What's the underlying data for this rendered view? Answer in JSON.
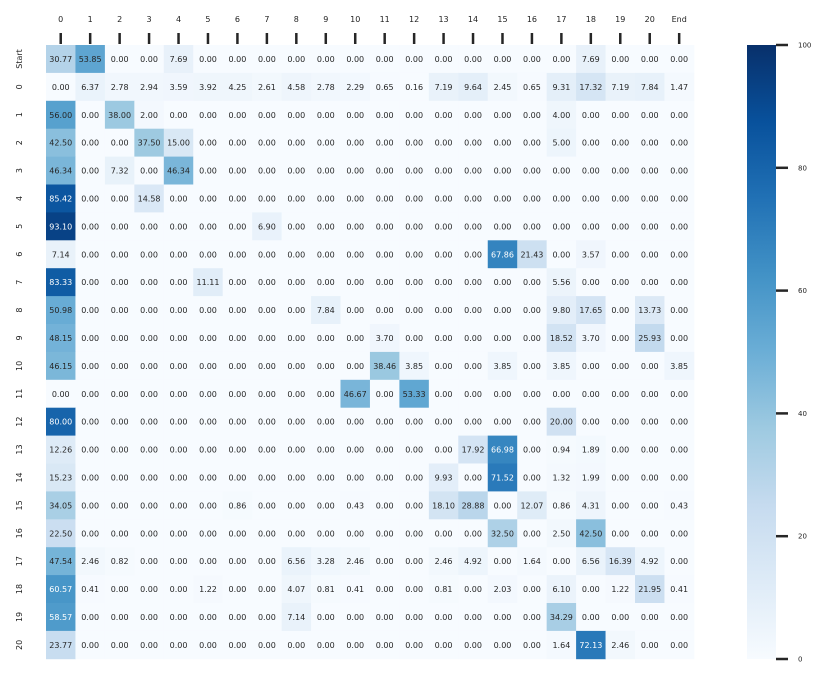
{
  "chart_data": {
    "type": "heatmap",
    "x_categories": [
      "0",
      "1",
      "2",
      "3",
      "4",
      "5",
      "6",
      "7",
      "8",
      "9",
      "10",
      "11",
      "12",
      "13",
      "14",
      "15",
      "16",
      "17",
      "18",
      "19",
      "20",
      "End"
    ],
    "y_categories": [
      "Start",
      "0",
      "1",
      "2",
      "3",
      "4",
      "5",
      "6",
      "7",
      "8",
      "9",
      "10",
      "11",
      "12",
      "13",
      "14",
      "15",
      "16",
      "17",
      "18",
      "19",
      "20"
    ],
    "values": [
      [
        30.77,
        53.85,
        0.0,
        0.0,
        7.69,
        0.0,
        0.0,
        0.0,
        0.0,
        0.0,
        0.0,
        0.0,
        0.0,
        0.0,
        0.0,
        0.0,
        0.0,
        0.0,
        7.69,
        0.0,
        0.0,
        0.0
      ],
      [
        0.0,
        6.37,
        2.78,
        2.94,
        3.59,
        3.92,
        4.25,
        2.61,
        4.58,
        2.78,
        2.29,
        0.65,
        0.16,
        7.19,
        9.64,
        2.45,
        0.65,
        9.31,
        17.32,
        7.19,
        7.84,
        1.47
      ],
      [
        56.0,
        0.0,
        38.0,
        2.0,
        0.0,
        0.0,
        0.0,
        0.0,
        0.0,
        0.0,
        0.0,
        0.0,
        0.0,
        0.0,
        0.0,
        0.0,
        0.0,
        4.0,
        0.0,
        0.0,
        0.0,
        0.0
      ],
      [
        42.5,
        0.0,
        0.0,
        37.5,
        15.0,
        0.0,
        0.0,
        0.0,
        0.0,
        0.0,
        0.0,
        0.0,
        0.0,
        0.0,
        0.0,
        0.0,
        0.0,
        5.0,
        0.0,
        0.0,
        0.0,
        0.0
      ],
      [
        46.34,
        0.0,
        7.32,
        0.0,
        46.34,
        0.0,
        0.0,
        0.0,
        0.0,
        0.0,
        0.0,
        0.0,
        0.0,
        0.0,
        0.0,
        0.0,
        0.0,
        0.0,
        0.0,
        0.0,
        0.0,
        0.0
      ],
      [
        85.42,
        0.0,
        0.0,
        14.58,
        0.0,
        0.0,
        0.0,
        0.0,
        0.0,
        0.0,
        0.0,
        0.0,
        0.0,
        0.0,
        0.0,
        0.0,
        0.0,
        0.0,
        0.0,
        0.0,
        0.0,
        0.0
      ],
      [
        93.1,
        0.0,
        0.0,
        0.0,
        0.0,
        0.0,
        0.0,
        6.9,
        0.0,
        0.0,
        0.0,
        0.0,
        0.0,
        0.0,
        0.0,
        0.0,
        0.0,
        0.0,
        0.0,
        0.0,
        0.0,
        0.0
      ],
      [
        7.14,
        0.0,
        0.0,
        0.0,
        0.0,
        0.0,
        0.0,
        0.0,
        0.0,
        0.0,
        0.0,
        0.0,
        0.0,
        0.0,
        0.0,
        67.86,
        21.43,
        0.0,
        3.57,
        0.0,
        0.0,
        0.0
      ],
      [
        83.33,
        0.0,
        0.0,
        0.0,
        0.0,
        11.11,
        0.0,
        0.0,
        0.0,
        0.0,
        0.0,
        0.0,
        0.0,
        0.0,
        0.0,
        0.0,
        0.0,
        5.56,
        0.0,
        0.0,
        0.0,
        0.0
      ],
      [
        50.98,
        0.0,
        0.0,
        0.0,
        0.0,
        0.0,
        0.0,
        0.0,
        0.0,
        7.84,
        0.0,
        0.0,
        0.0,
        0.0,
        0.0,
        0.0,
        0.0,
        9.8,
        17.65,
        0.0,
        13.73,
        0.0
      ],
      [
        48.15,
        0.0,
        0.0,
        0.0,
        0.0,
        0.0,
        0.0,
        0.0,
        0.0,
        0.0,
        0.0,
        3.7,
        0.0,
        0.0,
        0.0,
        0.0,
        0.0,
        18.52,
        3.7,
        0.0,
        25.93,
        0.0
      ],
      [
        46.15,
        0.0,
        0.0,
        0.0,
        0.0,
        0.0,
        0.0,
        0.0,
        0.0,
        0.0,
        0.0,
        38.46,
        3.85,
        0.0,
        0.0,
        3.85,
        0.0,
        3.85,
        0.0,
        0.0,
        0.0,
        3.85
      ],
      [
        0.0,
        0.0,
        0.0,
        0.0,
        0.0,
        0.0,
        0.0,
        0.0,
        0.0,
        0.0,
        46.67,
        0.0,
        53.33,
        0.0,
        0.0,
        0.0,
        0.0,
        0.0,
        0.0,
        0.0,
        0.0,
        0.0
      ],
      [
        80.0,
        0.0,
        0.0,
        0.0,
        0.0,
        0.0,
        0.0,
        0.0,
        0.0,
        0.0,
        0.0,
        0.0,
        0.0,
        0.0,
        0.0,
        0.0,
        0.0,
        20.0,
        0.0,
        0.0,
        0.0,
        0.0
      ],
      [
        12.26,
        0.0,
        0.0,
        0.0,
        0.0,
        0.0,
        0.0,
        0.0,
        0.0,
        0.0,
        0.0,
        0.0,
        0.0,
        0.0,
        17.92,
        66.98,
        0.0,
        0.94,
        1.89,
        0.0,
        0.0,
        0.0
      ],
      [
        15.23,
        0.0,
        0.0,
        0.0,
        0.0,
        0.0,
        0.0,
        0.0,
        0.0,
        0.0,
        0.0,
        0.0,
        0.0,
        9.93,
        0.0,
        71.52,
        0.0,
        1.32,
        1.99,
        0.0,
        0.0,
        0.0
      ],
      [
        34.05,
        0.0,
        0.0,
        0.0,
        0.0,
        0.0,
        0.86,
        0.0,
        0.0,
        0.0,
        0.43,
        0.0,
        0.0,
        18.1,
        28.88,
        0.0,
        12.07,
        0.86,
        4.31,
        0.0,
        0.0,
        0.43
      ],
      [
        22.5,
        0.0,
        0.0,
        0.0,
        0.0,
        0.0,
        0.0,
        0.0,
        0.0,
        0.0,
        0.0,
        0.0,
        0.0,
        0.0,
        0.0,
        32.5,
        0.0,
        2.5,
        42.5,
        0.0,
        0.0,
        0.0
      ],
      [
        47.54,
        2.46,
        0.82,
        0.0,
        0.0,
        0.0,
        0.0,
        0.0,
        6.56,
        3.28,
        2.46,
        0.0,
        0.0,
        2.46,
        4.92,
        0.0,
        1.64,
        0.0,
        6.56,
        16.39,
        4.92,
        0.0
      ],
      [
        60.57,
        0.41,
        0.0,
        0.0,
        0.0,
        1.22,
        0.0,
        0.0,
        4.07,
        0.81,
        0.41,
        0.0,
        0.0,
        0.81,
        0.0,
        2.03,
        0.0,
        6.1,
        0.0,
        1.22,
        21.95,
        0.41
      ],
      [
        58.57,
        0.0,
        0.0,
        0.0,
        0.0,
        0.0,
        0.0,
        0.0,
        7.14,
        0.0,
        0.0,
        0.0,
        0.0,
        0.0,
        0.0,
        0.0,
        0.0,
        34.29,
        0.0,
        0.0,
        0.0,
        0.0
      ],
      [
        23.77,
        0.0,
        0.0,
        0.0,
        0.0,
        0.0,
        0.0,
        0.0,
        0.0,
        0.0,
        0.0,
        0.0,
        0.0,
        0.0,
        0.0,
        0.0,
        0.0,
        1.64,
        72.13,
        2.46,
        0.0,
        0.0
      ]
    ],
    "value_format": "0.00",
    "color_scale": {
      "name": "Blues",
      "min": 0,
      "max": 100,
      "colors": [
        "#f7fbff",
        "#deebf7",
        "#c6dbef",
        "#9ecae1",
        "#6baed6",
        "#4292c6",
        "#2171b5",
        "#08519c",
        "#08306b"
      ]
    },
    "colorbar_ticks": [
      0,
      20,
      40,
      60,
      80,
      100
    ],
    "x_axis_position": "top",
    "colorbar_position": "right",
    "grid": false
  }
}
